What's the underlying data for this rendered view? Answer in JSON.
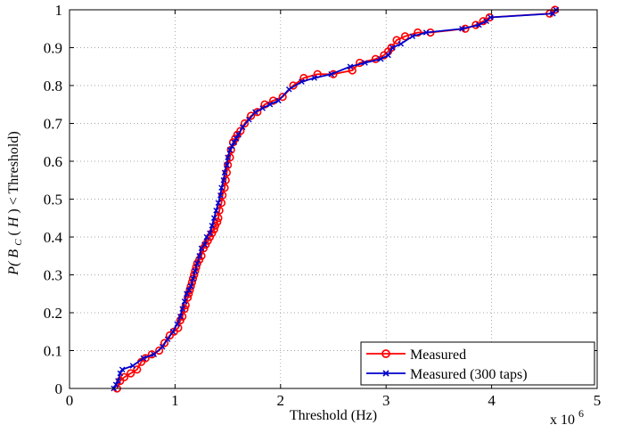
{
  "chart_data": {
    "type": "line",
    "title": "",
    "xlabel": "Threshold (Hz)",
    "ylabel": "P(B_C(H) < Threshold)",
    "ylabel_parts": {
      "p": "P(",
      "b": "B",
      "sub": "C",
      "h": "(",
      "hi": "H",
      "rest": ") < Threshold)"
    },
    "x_multiplier_base": "x 10",
    "x_multiplier_exp": "6",
    "xlim": [
      0,
      5
    ],
    "ylim": [
      0,
      1
    ],
    "x_ticks": [
      "0",
      "1",
      "2",
      "3",
      "4",
      "5"
    ],
    "y_ticks": [
      "0",
      "0.1",
      "0.2",
      "0.3",
      "0.4",
      "0.5",
      "0.6",
      "0.7",
      "0.8",
      "0.9",
      "1"
    ],
    "grid": true,
    "legend_position": "bottom-right",
    "series": [
      {
        "name": "Measured",
        "color": "#ff0000",
        "marker": "circle",
        "x": [
          0.45,
          0.48,
          0.52,
          0.58,
          0.64,
          0.68,
          0.72,
          0.78,
          0.85,
          0.9,
          0.95,
          0.99,
          1.03,
          1.05,
          1.07,
          1.09,
          1.1,
          1.12,
          1.13,
          1.14,
          1.15,
          1.16,
          1.17,
          1.18,
          1.19,
          1.2,
          1.21,
          1.23,
          1.25,
          1.27,
          1.29,
          1.31,
          1.33,
          1.35,
          1.37,
          1.38,
          1.4,
          1.41,
          1.42,
          1.44,
          1.45,
          1.47,
          1.48,
          1.49,
          1.5,
          1.52,
          1.53,
          1.55,
          1.57,
          1.59,
          1.62,
          1.66,
          1.72,
          1.78,
          1.85,
          1.93,
          2.02,
          2.12,
          2.22,
          2.35,
          2.5,
          2.68,
          2.75,
          2.9,
          2.98,
          3.02,
          3.05,
          3.1,
          3.18,
          3.3,
          3.42,
          3.75,
          3.85,
          3.92,
          3.98,
          4.55,
          4.6
        ],
        "y": [
          0.0,
          0.02,
          0.03,
          0.04,
          0.05,
          0.07,
          0.08,
          0.09,
          0.1,
          0.12,
          0.14,
          0.15,
          0.16,
          0.18,
          0.19,
          0.21,
          0.22,
          0.24,
          0.25,
          0.26,
          0.27,
          0.28,
          0.29,
          0.3,
          0.31,
          0.32,
          0.33,
          0.34,
          0.35,
          0.37,
          0.38,
          0.39,
          0.4,
          0.41,
          0.42,
          0.43,
          0.44,
          0.45,
          0.47,
          0.49,
          0.51,
          0.53,
          0.55,
          0.57,
          0.59,
          0.61,
          0.63,
          0.65,
          0.66,
          0.67,
          0.68,
          0.7,
          0.72,
          0.73,
          0.75,
          0.76,
          0.77,
          0.8,
          0.82,
          0.83,
          0.83,
          0.84,
          0.86,
          0.87,
          0.88,
          0.89,
          0.9,
          0.92,
          0.93,
          0.94,
          0.94,
          0.95,
          0.96,
          0.97,
          0.98,
          0.99,
          1.0
        ]
      },
      {
        "name": "Measured (300 taps)",
        "color": "#0000cc",
        "marker": "x",
        "x": [
          0.42,
          0.44,
          0.46,
          0.48,
          0.5,
          0.6,
          0.7,
          0.8,
          0.88,
          0.93,
          0.98,
          1.02,
          1.05,
          1.07,
          1.09,
          1.11,
          1.13,
          1.15,
          1.17,
          1.19,
          1.21,
          1.23,
          1.25,
          1.28,
          1.3,
          1.33,
          1.35,
          1.37,
          1.39,
          1.41,
          1.43,
          1.44,
          1.46,
          1.47,
          1.49,
          1.5,
          1.52,
          1.54,
          1.56,
          1.58,
          1.6,
          1.64,
          1.7,
          1.76,
          1.83,
          1.9,
          1.98,
          2.08,
          2.2,
          2.32,
          2.48,
          2.66,
          2.8,
          2.95,
          3.02,
          3.06,
          3.14,
          3.25,
          3.38,
          3.72,
          3.88,
          3.95,
          3.99,
          4.58,
          4.61
        ],
        "y": [
          0.0,
          0.01,
          0.02,
          0.04,
          0.05,
          0.06,
          0.08,
          0.09,
          0.11,
          0.13,
          0.15,
          0.17,
          0.19,
          0.21,
          0.23,
          0.25,
          0.26,
          0.27,
          0.29,
          0.31,
          0.33,
          0.35,
          0.37,
          0.38,
          0.4,
          0.41,
          0.43,
          0.45,
          0.47,
          0.49,
          0.51,
          0.53,
          0.55,
          0.57,
          0.59,
          0.61,
          0.63,
          0.64,
          0.65,
          0.66,
          0.67,
          0.69,
          0.71,
          0.73,
          0.74,
          0.75,
          0.76,
          0.79,
          0.81,
          0.82,
          0.83,
          0.85,
          0.86,
          0.87,
          0.88,
          0.9,
          0.91,
          0.93,
          0.94,
          0.95,
          0.96,
          0.97,
          0.98,
          0.99,
          1.0
        ]
      }
    ]
  }
}
